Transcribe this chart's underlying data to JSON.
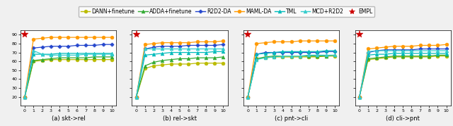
{
  "x": [
    0,
    1,
    2,
    3,
    4,
    5,
    6,
    7,
    8,
    9,
    10
  ],
  "subplots": [
    {
      "title": "(a) skt->rel",
      "empl_y": 90,
      "series": [
        {
          "label": "DANN+finetune",
          "color": "#bbbb00",
          "marker": "o",
          "y": [
            20,
            60,
            61,
            62,
            62,
            62,
            62,
            62,
            62,
            62,
            62
          ]
        },
        {
          "label": "ADDA+finetune",
          "color": "#33aa33",
          "marker": "^",
          "y": [
            20,
            61,
            62,
            63,
            64,
            64,
            64,
            64,
            65,
            65,
            65
          ]
        },
        {
          "label": "R2D2-DA",
          "color": "#2244cc",
          "marker": "P",
          "y": [
            20,
            75,
            76,
            77,
            77,
            77,
            78,
            78,
            78,
            79,
            79
          ]
        },
        {
          "label": "MAML-DA",
          "color": "#ff9900",
          "marker": "o",
          "y": [
            20,
            85,
            86,
            87,
            87,
            87,
            87,
            87,
            87,
            87,
            87
          ]
        },
        {
          "label": "TML",
          "color": "#00bbbb",
          "marker": "^",
          "y": [
            20,
            68,
            68,
            68,
            69,
            69,
            69,
            69,
            69,
            69,
            69
          ]
        },
        {
          "label": "MCD+R2D2",
          "color": "#33cccc",
          "marker": "^",
          "y": [
            20,
            72,
            68,
            67,
            67,
            67,
            67,
            68,
            68,
            68,
            68
          ]
        }
      ]
    },
    {
      "title": "(b) rel->skt",
      "empl_y": 90,
      "series": [
        {
          "label": "DANN+finetune",
          "color": "#bbbb00",
          "marker": "o",
          "y": [
            20,
            52,
            55,
            56,
            57,
            57,
            57,
            58,
            58,
            58,
            58
          ]
        },
        {
          "label": "ADDA+finetune",
          "color": "#33aa33",
          "marker": "^",
          "y": [
            20,
            55,
            59,
            61,
            62,
            63,
            63,
            64,
            64,
            64,
            65
          ]
        },
        {
          "label": "R2D2-DA",
          "color": "#2244cc",
          "marker": "P",
          "y": [
            20,
            74,
            76,
            77,
            77,
            77,
            78,
            78,
            78,
            78,
            79
          ]
        },
        {
          "label": "MAML-DA",
          "color": "#ff9900",
          "marker": "o",
          "y": [
            20,
            79,
            80,
            81,
            81,
            81,
            81,
            82,
            82,
            82,
            83
          ]
        },
        {
          "label": "TML",
          "color": "#00bbbb",
          "marker": "^",
          "y": [
            20,
            67,
            68,
            69,
            70,
            70,
            70,
            70,
            70,
            71,
            71
          ]
        },
        {
          "label": "MCD+R2D2",
          "color": "#33cccc",
          "marker": "^",
          "y": [
            20,
            74,
            74,
            74,
            74,
            74,
            74,
            74,
            74,
            74,
            74
          ]
        }
      ]
    },
    {
      "title": "(c) pnt->cli",
      "empl_y": 90,
      "series": [
        {
          "label": "DANN+finetune",
          "color": "#bbbb00",
          "marker": "o",
          "y": [
            20,
            63,
            64,
            65,
            65,
            65,
            65,
            65,
            65,
            66,
            66
          ]
        },
        {
          "label": "ADDA+finetune",
          "color": "#33aa33",
          "marker": "^",
          "y": [
            20,
            63,
            65,
            66,
            66,
            66,
            66,
            66,
            66,
            66,
            67
          ]
        },
        {
          "label": "R2D2-DA",
          "color": "#2244cc",
          "marker": "P",
          "y": [
            20,
            68,
            70,
            70,
            70,
            70,
            70,
            70,
            70,
            71,
            71
          ]
        },
        {
          "label": "MAML-DA",
          "color": "#ff9900",
          "marker": "o",
          "y": [
            20,
            80,
            81,
            82,
            82,
            82,
            83,
            83,
            83,
            83,
            83
          ]
        },
        {
          "label": "TML",
          "color": "#00bbbb",
          "marker": "^",
          "y": [
            20,
            68,
            69,
            70,
            71,
            71,
            71,
            71,
            71,
            72,
            72
          ]
        },
        {
          "label": "MCD+R2D2",
          "color": "#33cccc",
          "marker": "^",
          "y": [
            20,
            62,
            64,
            65,
            66,
            66,
            66,
            67,
            67,
            67,
            67
          ]
        }
      ]
    },
    {
      "title": "(d) cli->pnt",
      "empl_y": 90,
      "series": [
        {
          "label": "DANN+finetune",
          "color": "#bbbb00",
          "marker": "o",
          "y": [
            20,
            62,
            63,
            64,
            65,
            65,
            65,
            65,
            65,
            66,
            66
          ]
        },
        {
          "label": "ADDA+finetune",
          "color": "#33aa33",
          "marker": "^",
          "y": [
            20,
            63,
            64,
            65,
            66,
            66,
            66,
            66,
            66,
            67,
            67
          ]
        },
        {
          "label": "R2D2-DA",
          "color": "#2244cc",
          "marker": "P",
          "y": [
            20,
            70,
            72,
            73,
            73,
            73,
            73,
            74,
            74,
            74,
            74
          ]
        },
        {
          "label": "MAML-DA",
          "color": "#ff9900",
          "marker": "o",
          "y": [
            20,
            74,
            75,
            76,
            77,
            77,
            77,
            78,
            78,
            78,
            79
          ]
        },
        {
          "label": "TML",
          "color": "#00bbbb",
          "marker": "^",
          "y": [
            20,
            67,
            68,
            68,
            69,
            69,
            69,
            69,
            69,
            69,
            69
          ]
        },
        {
          "label": "MCD+R2D2",
          "color": "#33cccc",
          "marker": "^",
          "y": [
            20,
            71,
            72,
            72,
            72,
            72,
            72,
            72,
            72,
            72,
            72
          ]
        }
      ]
    }
  ],
  "legend_entries": [
    {
      "label": "DANN+finetune",
      "color": "#bbbb00",
      "marker": "o"
    },
    {
      "label": "ADDA+finetune",
      "color": "#33aa33",
      "marker": "^"
    },
    {
      "label": "R2D2-DA",
      "color": "#2244cc",
      "marker": "P"
    },
    {
      "label": "MAML-DA",
      "color": "#ff9900",
      "marker": "o"
    },
    {
      "label": "TML",
      "color": "#00bbbb",
      "marker": "^"
    },
    {
      "label": "MCD+R2D2",
      "color": "#33cccc",
      "marker": "^"
    },
    {
      "label": "EMPL",
      "color": "#cc0000",
      "marker": "*"
    }
  ],
  "ylim": [
    10,
    95
  ],
  "yticks": [
    20,
    30,
    40,
    50,
    60,
    70,
    80,
    90
  ],
  "xlim": [
    -0.5,
    10.5
  ],
  "xticks": [
    0,
    1,
    2,
    3,
    4,
    5,
    6,
    7,
    8,
    9,
    10
  ],
  "fig_bg": "#f0f0f0"
}
